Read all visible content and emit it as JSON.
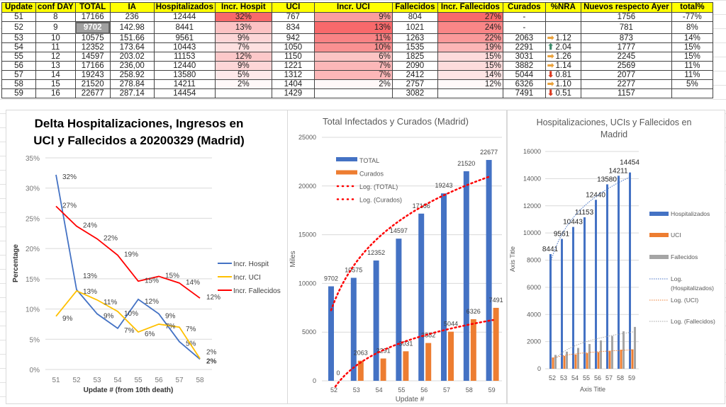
{
  "table": {
    "headers": [
      "Update",
      "conf DAY",
      "TOTAL",
      "IA",
      "Hospitalizados",
      "Incr. Hospit",
      "UCI",
      "Incr. UCI",
      "Fallecidos",
      "Incr. Fallecidos",
      "Curados",
      "%NRA",
      "Nuevos respecto Ayer",
      "total%"
    ],
    "rows": [
      [
        "51",
        "8",
        "17166",
        "236",
        "12444",
        "32%",
        "767",
        "9%",
        "804",
        "27%",
        "-",
        "",
        "1756",
        "-77%"
      ],
      [
        "52",
        "9",
        "9702",
        "142.98",
        "8441",
        "13%",
        "834",
        "13%",
        "1021",
        "24%",
        "-",
        "",
        "781",
        "8%"
      ],
      [
        "53",
        "10",
        "10575",
        "151.66",
        "9561",
        "9%",
        "942",
        "11%",
        "1263",
        "22%",
        "2063",
        "1.12",
        "873",
        "14%"
      ],
      [
        "54",
        "11",
        "12352",
        "173.64",
        "10443",
        "7%",
        "1050",
        "10%",
        "1535",
        "19%",
        "2291",
        "2.04",
        "1777",
        "15%"
      ],
      [
        "55",
        "12",
        "14597",
        "203.02",
        "11153",
        "12%",
        "1150",
        "6%",
        "1825",
        "15%",
        "3031",
        "1.26",
        "2245",
        "15%"
      ],
      [
        "56",
        "13",
        "17166",
        "236,00",
        "12440",
        "9%",
        "1221",
        "7%",
        "2090",
        "15%",
        "3882",
        "1.14",
        "2569",
        "11%"
      ],
      [
        "57",
        "14",
        "19243",
        "258.92",
        "13580",
        "5%",
        "1312",
        "7%",
        "2412",
        "14%",
        "5044",
        "0.81",
        "2077",
        "11%"
      ],
      [
        "58",
        "15",
        "21520",
        "278.84",
        "14211",
        "2%",
        "1404",
        "2%",
        "2757",
        "12%",
        "6326",
        "1.10",
        "2277",
        "5%"
      ],
      [
        "59",
        "16",
        "22677",
        "287.14",
        "14454",
        "",
        "1429",
        "",
        "3082",
        "",
        "7491",
        "0.51",
        "1157",
        ""
      ]
    ],
    "nra_icons": [
      "",
      "",
      "arrow-right",
      "arrow-up",
      "arrow-right",
      "arrow-right",
      "arrow-down",
      "arrow-right",
      "arrow-down"
    ],
    "icon_colors": {
      "arrow-right": "#e9a13b",
      "arrow-up": "#3a8a6a",
      "arrow-down": "#d9381e"
    },
    "heat_color": "#f8696b",
    "selected_cell": "9702"
  },
  "chart_data": [
    {
      "type": "line",
      "title": "Delta Hospitalizaciones, Ingresos en UCI y Fallecidos a 20200329 (Madrid)",
      "title_lines": [
        "Delta Hospitalizaciones, Ingresos en",
        "UCI y Fallecidos a 20200329 (Madrid)"
      ],
      "xlabel": "Update # (from 10th death)",
      "ylabel": "Percentage",
      "ylim": [
        0,
        35
      ],
      "yticks": [
        "0%",
        "5%",
        "10%",
        "15%",
        "20%",
        "25%",
        "30%",
        "35%"
      ],
      "categories": [
        "51",
        "52",
        "53",
        "54",
        "55",
        "56",
        "57",
        "58"
      ],
      "legend": "right",
      "grid": true,
      "series": [
        {
          "name": "Incr. Hospit",
          "color": "#4472c4",
          "values": [
            32.2,
            13.2,
            9.2,
            6.8,
            11.6,
            9.2,
            4.6,
            1.7
          ],
          "labels": [
            "32%",
            "13%",
            "9%",
            "7%",
            "12%",
            "9%",
            "5%",
            "2%"
          ]
        },
        {
          "name": "Incr. UCI",
          "color": "#ffc000",
          "values": [
            8.8,
            13.0,
            11.5,
            9.6,
            6.2,
            7.5,
            7.0,
            1.8
          ],
          "labels": [
            "9%",
            "13%",
            "11%",
            "10%",
            "6%",
            "7%",
            "7%",
            "2%"
          ]
        },
        {
          "name": "Incr. Fallecidos",
          "color": "#ff0000",
          "values": [
            27.0,
            23.7,
            21.6,
            18.9,
            14.6,
            15.4,
            14.3,
            11.8
          ],
          "labels": [
            "27%",
            "24%",
            "22%",
            "19%",
            "15%",
            "15%",
            "14%",
            "12%"
          ]
        }
      ]
    },
    {
      "type": "bar",
      "title": "Total Infectados y Curados (Madrid)",
      "xlabel": "Update #",
      "ylabel": "Miles",
      "ylim": [
        0,
        25000
      ],
      "yticks": [
        "0",
        "5000",
        "10000",
        "15000",
        "20000",
        "25000"
      ],
      "categories": [
        "52",
        "53",
        "54",
        "55",
        "56",
        "57",
        "58",
        "59"
      ],
      "legend": "top-left",
      "grid": true,
      "series": [
        {
          "name": "TOTAL",
          "color": "#4472c4",
          "values": [
            9702,
            10575,
            12352,
            14597,
            17166,
            19243,
            21520,
            22677
          ]
        },
        {
          "name": "Curados",
          "color": "#ed7d31",
          "values": [
            0,
            2063,
            2291,
            3031,
            3882,
            5044,
            6326,
            7491
          ]
        }
      ],
      "trendlines": [
        {
          "name": "Log. (TOTAL)",
          "color": "#ff0000",
          "of": "TOTAL"
        },
        {
          "name": "Log. (Curados)",
          "color": "#ff0000",
          "of": "Curados"
        }
      ]
    },
    {
      "type": "bar",
      "title": "Hospitalizaciones, UCIs y Fallecidos en Madrid",
      "title_lines": [
        "Hospitalizaciones, UCIs y Fallecidos en",
        "Madrid"
      ],
      "xlabel": "Axis Title",
      "ylabel": "Axis Title",
      "ylim": [
        0,
        16000
      ],
      "yticks": [
        "0",
        "2000",
        "4000",
        "6000",
        "8000",
        "10000",
        "12000",
        "14000",
        "16000"
      ],
      "categories": [
        "52",
        "53",
        "54",
        "55",
        "56",
        "57",
        "58",
        "59"
      ],
      "legend": "right",
      "grid": true,
      "series": [
        {
          "name": "Hospitalizados",
          "color": "#4472c4",
          "values": [
            8441,
            9561,
            10443,
            11153,
            12440,
            13580,
            14211,
            14454
          ],
          "labeled": true
        },
        {
          "name": "UCI",
          "color": "#ed7d31",
          "values": [
            834,
            942,
            1050,
            1150,
            1221,
            1312,
            1404,
            1429
          ]
        },
        {
          "name": "Fallecidos",
          "color": "#a5a5a5",
          "values": [
            1021,
            1263,
            1535,
            1825,
            2090,
            2412,
            2757,
            3082
          ]
        }
      ],
      "trendlines": [
        {
          "name": "Log. (Hospitalizados)",
          "name_lines": [
            "Log.",
            "(Hospitalizados)"
          ],
          "color": "#4472c4",
          "of": "Hospitalizados"
        },
        {
          "name": "Log. (UCI)",
          "color": "#ed7d31",
          "of": "UCI"
        },
        {
          "name": "Log. (Fallecidos)",
          "color": "#a5a5a5",
          "of": "Fallecidos"
        }
      ]
    }
  ]
}
